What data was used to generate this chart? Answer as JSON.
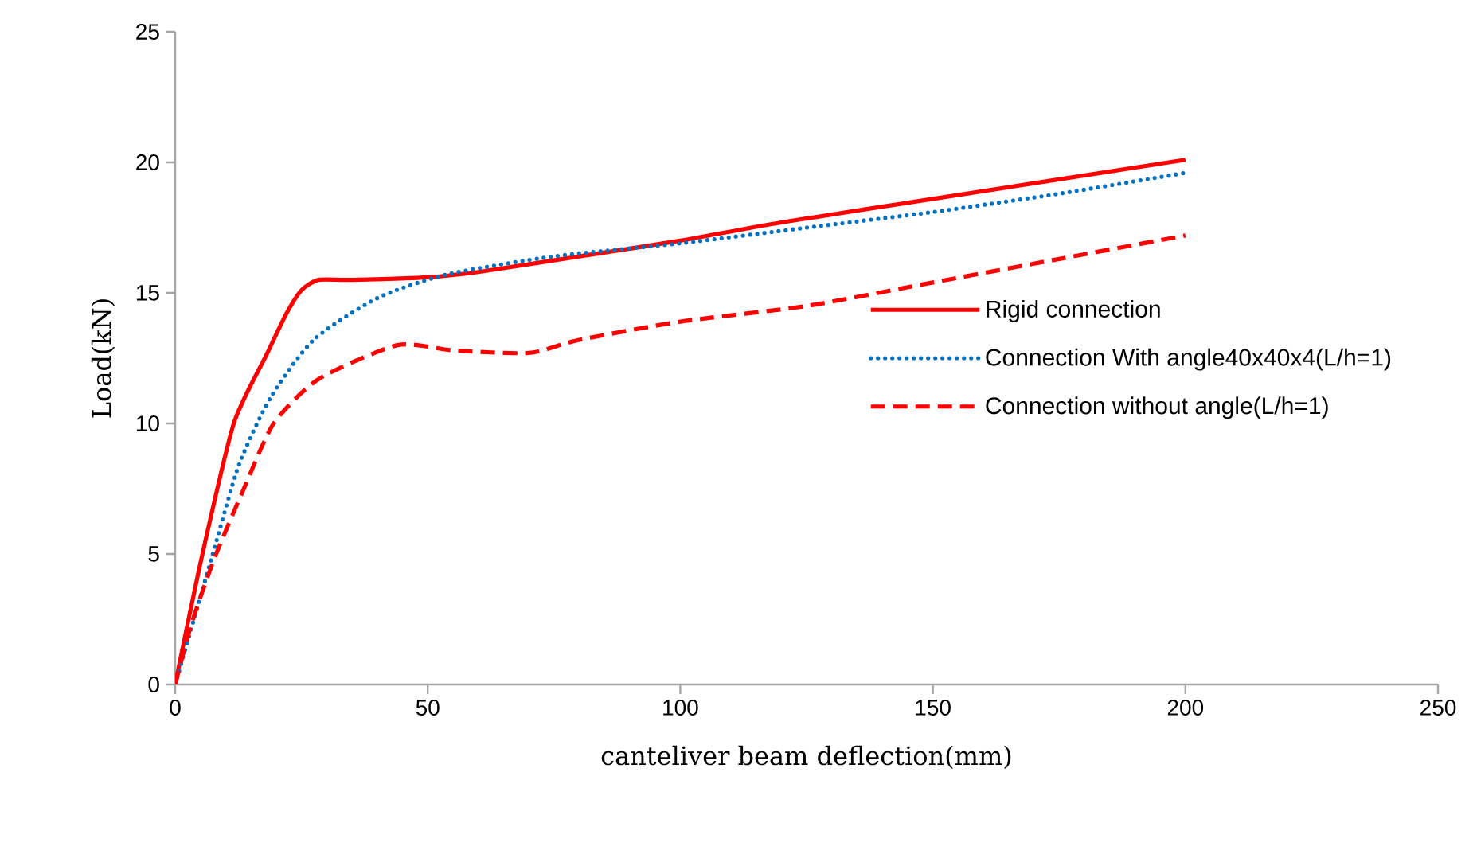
{
  "chart_data": {
    "type": "line",
    "xlabel": "canteliver beam deflection(mm)",
    "ylabel": "Load(kN)",
    "xlim": [
      0,
      250
    ],
    "xticks": [
      0,
      50,
      100,
      150,
      200,
      250
    ],
    "ylim": [
      0,
      25
    ],
    "yticks": [
      0,
      5,
      10,
      15,
      20,
      25
    ],
    "grid": false,
    "legend": "right",
    "marker": "none",
    "series": [
      {
        "name": "Rigid connection",
        "color": "#ff0000",
        "line_style": "solid",
        "x": [
          0,
          5.4,
          11.6,
          18,
          22,
          25,
          28.4,
          35,
          50,
          60,
          80,
          100,
          120,
          150,
          200
        ],
        "values": [
          0,
          5,
          10,
          12.6,
          14.2,
          15.1,
          15.5,
          15.5,
          15.6,
          15.8,
          16.4,
          17.0,
          17.7,
          18.6,
          20.1
        ]
      },
      {
        "name": "Connection With angle40x40x4(L/h=1)",
        "color": "#0070c0",
        "line_style": "dotted",
        "x": [
          0,
          7.3,
          12.6,
          18.9,
          27.4,
          40,
          53.6,
          75,
          100,
          125,
          150,
          175,
          200
        ],
        "values": [
          0,
          4.9,
          8.4,
          11.0,
          13.2,
          14.8,
          15.7,
          16.4,
          16.9,
          17.5,
          18.1,
          18.8,
          19.6
        ]
      },
      {
        "name": "Connection without angle(L/h=1)",
        "color": "#ff0000",
        "line_style": "dashed",
        "x": [
          0,
          3.2,
          7.9,
          13.6,
          19.5,
          28.4,
          44,
          55,
          70,
          80,
          100,
          125,
          150,
          175,
          200
        ],
        "values": [
          0,
          2.3,
          4.9,
          7.5,
          10.0,
          11.7,
          13.0,
          12.8,
          12.7,
          13.2,
          13.9,
          14.5,
          15.4,
          16.3,
          17.2
        ]
      }
    ]
  }
}
